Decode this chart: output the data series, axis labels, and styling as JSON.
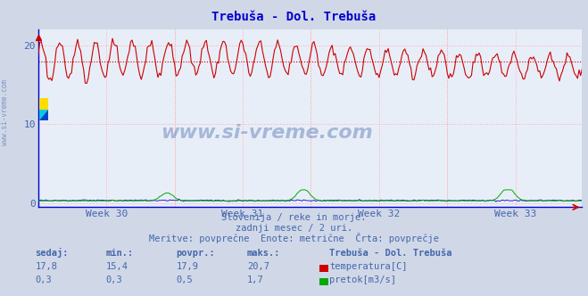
{
  "title": "Trebuša - Dol. Trebuša",
  "title_color": "#0000cc",
  "background_color": "#d0d8e8",
  "plot_bg_color": "#e8eef8",
  "grid_color": "#ffaaaa",
  "grid_style": "dotted",
  "xlabel_weeks": [
    "Week 30",
    "Week 31",
    "Week 32",
    "Week 33"
  ],
  "ylim": [
    -0.5,
    22
  ],
  "n_points": 360,
  "temp_mean": 17.9,
  "temp_min": 15.4,
  "temp_max": 20.7,
  "temp_current": 17.8,
  "flow_max": 1.7,
  "temp_color": "#cc0000",
  "flow_color": "#00aa00",
  "height_color": "#0000cc",
  "avg_line_color": "#cc0000",
  "axis_color": "#0000cc",
  "subtitle1": "Slovenija / reke in morje.",
  "subtitle2": "zadnji mesec / 2 uri.",
  "subtitle3": "Meritve: povprečne  Enote: metrične  Črta: povprečje",
  "legend_title": "Trebuša - Dol. Trebuša",
  "label_temp": "temperatura[C]",
  "label_flow": "pretok[m3/s]",
  "table_headers": [
    "sedaj:",
    "min.:",
    "povpr.:",
    "maks.:"
  ],
  "table_temp": [
    "17,8",
    "15,4",
    "17,9",
    "20,7"
  ],
  "table_flow": [
    "0,3",
    "0,3",
    "0,5",
    "1,7"
  ],
  "watermark": "www.si-vreme.com",
  "text_color": "#4466aa",
  "sidebar_text": "www.si-vreme.com"
}
